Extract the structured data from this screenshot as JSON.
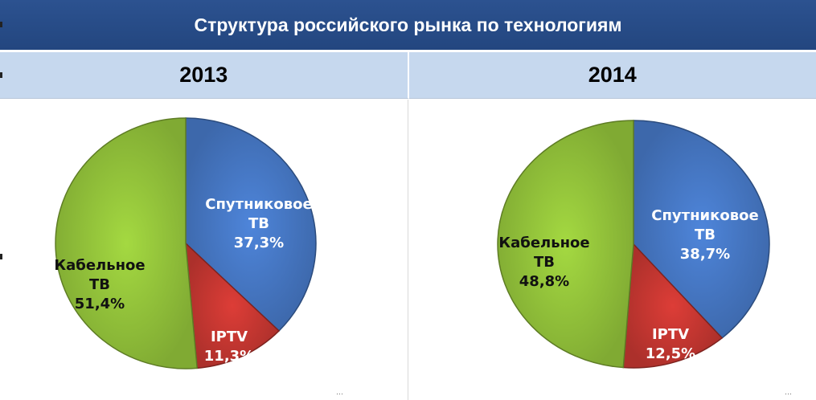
{
  "header": {
    "title": "Структура российского рынка по технологиям"
  },
  "chart_data": [
    {
      "type": "pie",
      "title": "2013",
      "slices": [
        {
          "name": "Спутниковое ТВ",
          "value": 37.3,
          "label_lines": [
            "Спутниковое",
            "ТВ",
            "37,3%"
          ],
          "color": "#4a7fd0",
          "label_color": "#ffffff"
        },
        {
          "name": "IPTV",
          "value": 11.3,
          "label_lines": [
            "IPTV",
            "11,3%"
          ],
          "color": "#d23a34",
          "label_color": "#ffffff"
        },
        {
          "name": "Кабельное ТВ",
          "value": 51.4,
          "label_lines": [
            "Кабельное",
            "ТВ",
            "51,4%"
          ],
          "color": "#9ccf3e",
          "label_color": "#111111"
        }
      ]
    },
    {
      "type": "pie",
      "title": "2014",
      "slices": [
        {
          "name": "Спутниковое ТВ",
          "value": 38.7,
          "label_lines": [
            "Спутниковое",
            "ТВ",
            "38,7%"
          ],
          "color": "#4a7fd0",
          "label_color": "#ffffff"
        },
        {
          "name": "IPTV",
          "value": 12.5,
          "label_lines": [
            "IPTV",
            "12,5%"
          ],
          "color": "#d23a34",
          "label_color": "#ffffff"
        },
        {
          "name": "Кабельное ТВ",
          "value": 48.8,
          "label_lines": [
            "Кабельное",
            "ТВ",
            "48,8%"
          ],
          "color": "#9ccf3e",
          "label_color": "#111111"
        }
      ]
    }
  ]
}
